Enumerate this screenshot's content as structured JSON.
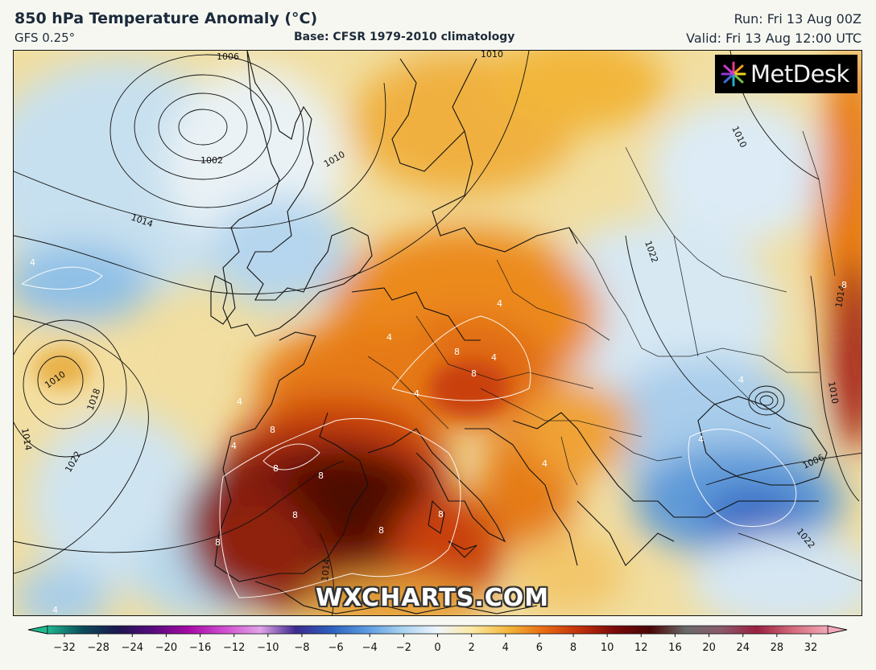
{
  "header": {
    "title": "850 hPa Temperature Anomaly (°C)",
    "model": "GFS 0.25°",
    "base": "Base: CFSR 1979-2010 climatology",
    "run": "Run: Fri 13 Aug 00Z",
    "valid": "Valid: Fri 13 Aug 12:00 UTC"
  },
  "logo": {
    "text": "MetDesk",
    "icon": "metdesk-starburst-icon"
  },
  "watermark": "WXCHARTS.COM",
  "colorbar": {
    "ticks": [
      "−32",
      "−28",
      "−24",
      "−20",
      "−16",
      "−12",
      "−10",
      "−8",
      "−6",
      "−4",
      "−2",
      "0",
      "2",
      "4",
      "6",
      "8",
      "10",
      "12",
      "16",
      "20",
      "24",
      "28",
      "32"
    ],
    "colors": [
      "#1fb98f",
      "#0a4a5a",
      "#1d1650",
      "#5a0a80",
      "#a60aa6",
      "#d04fd0",
      "#e2a3e8",
      "#3b2b8f",
      "#2c5fbf",
      "#5b9be0",
      "#a9d2f0",
      "#eef6fb",
      "#fbe7a0",
      "#f2b63a",
      "#e86a12",
      "#c2300a",
      "#7a0a0a",
      "#4a0505",
      "#6a6a6a",
      "#8a5a6a",
      "#9a2040",
      "#d36a7a",
      "#f2a8b8"
    ]
  },
  "isobars": [
    "1006",
    "1002",
    "1010",
    "1014",
    "1010",
    "1018",
    "1014",
    "1022",
    "1010",
    "1022",
    "1014",
    "1010",
    "1010",
    "1006",
    "1022",
    "1014"
  ],
  "isotherms": [
    "4",
    "4",
    "4",
    "4",
    "4",
    "8",
    "8",
    "8",
    "8",
    "8",
    "8",
    "8",
    "8",
    "8",
    "4",
    "4",
    "8",
    "4",
    "4",
    "4",
    "4"
  ]
}
